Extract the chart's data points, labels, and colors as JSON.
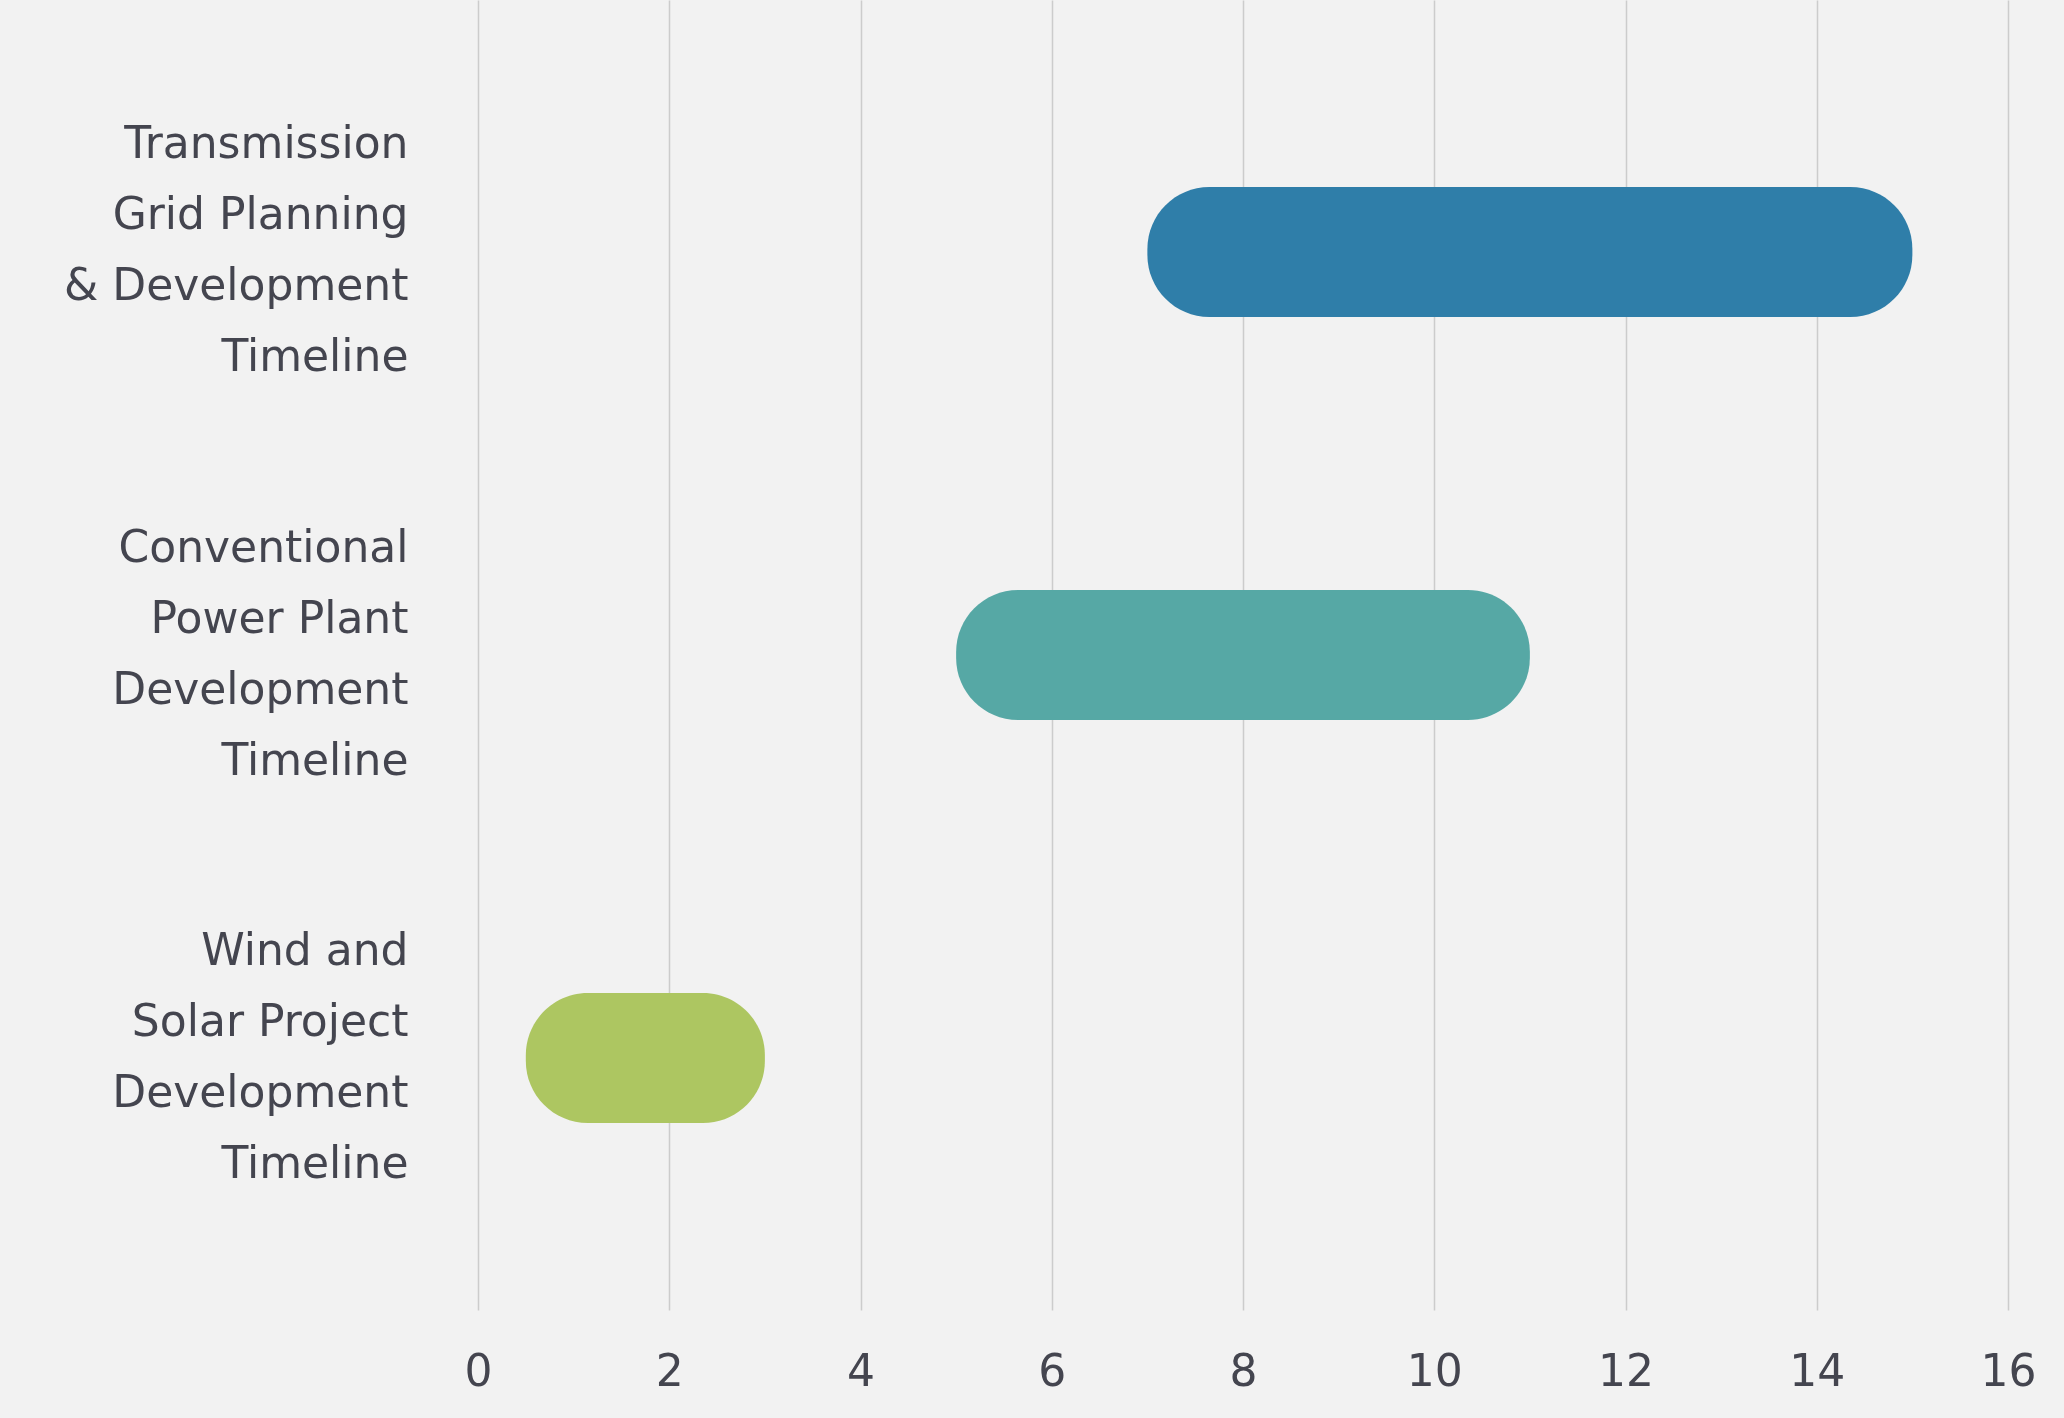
{
  "chart_data": {
    "type": "bar",
    "orientation": "horizontal",
    "categories": [
      "Transmission Grid Planning & Development Timeline",
      "Conventional Power Plant Development Timeline",
      "Wind and Solar Project Development Timeline"
    ],
    "base": [
      7,
      5,
      0.5
    ],
    "values": [
      8,
      6,
      2.5
    ],
    "colors": [
      "#2f7ea9",
      "#56a8a5",
      "#adc661"
    ],
    "xlim": [
      0,
      16
    ],
    "xticks": [
      0,
      2,
      4,
      6,
      8,
      10,
      12,
      14,
      16
    ],
    "grid": "x"
  }
}
